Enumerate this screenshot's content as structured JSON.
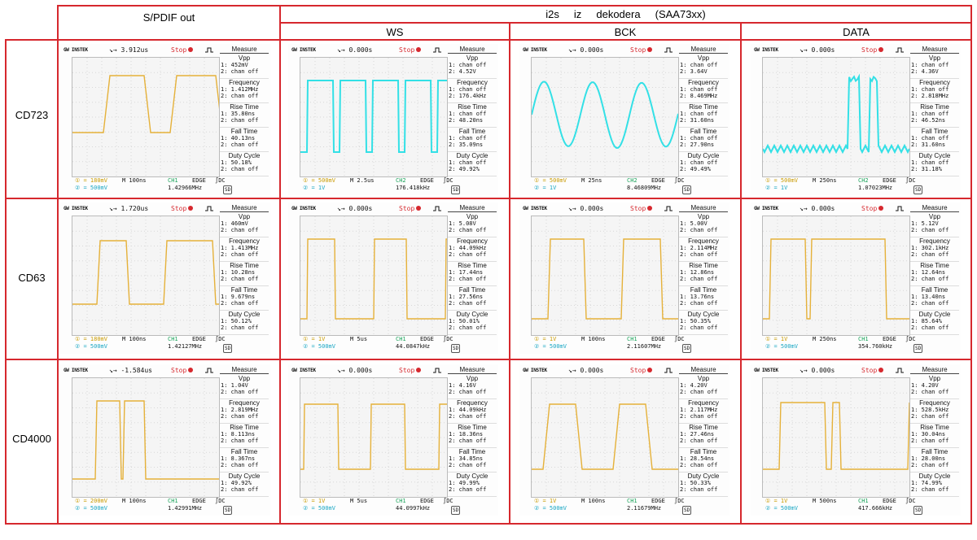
{
  "headers": {
    "spdif": "S/PDIF out",
    "i2s": "i2s     iz     dekodera     (SAA73xx)",
    "ws": "WS",
    "bck": "BCK",
    "data": "DATA"
  },
  "rows": [
    {
      "label": "CD723"
    },
    {
      "label": "CD63"
    },
    {
      "label": "CD4000"
    }
  ],
  "brand": "GW INSTEK",
  "stop_label": "Stop",
  "measure_title": "Measure",
  "measure_names": [
    "Vpp",
    "Frequency",
    "Rise Time",
    "Fall Time",
    "Duty Cycle"
  ],
  "colors": {
    "ch1": "#e5b13a",
    "ch2": "#33e0e6",
    "frame": "#d6282e"
  },
  "scopes": [
    {
      "row": 0,
      "col": 0,
      "trace_color": "ch1",
      "waveform": "spdif723",
      "trig": "↘→ 3.912us",
      "m": [
        "1: 452mV",
        "2: chan off",
        "1: 1.412MHz",
        "2: chan off",
        "1: 35.80ns",
        "2: chan off",
        "1: 40.13ns",
        "2: chan off",
        "1: 50.18%",
        "2: chan off"
      ],
      "ch1": "① = 180mV",
      "ch2": "② = 500mV",
      "time": "M 100ns",
      "src": "CH1",
      "edge": "EDGE",
      "freq": "1.42966MHz",
      "dc": "∫DC"
    },
    {
      "row": 0,
      "col": 1,
      "trace_color": "ch2",
      "waveform": "ws723",
      "trig": "↘→ 0.000s",
      "m": [
        "1: chan off",
        "2: 4.52V",
        "1: chan off",
        "2: 176.4kHz",
        "1: chan off",
        "2: 48.20ns",
        "1: chan off",
        "2: 35.09ns",
        "1: chan off",
        "2: 49.92%"
      ],
      "ch1": "① = 500mV",
      "ch2": "② = 1V",
      "time": "M 2.5us",
      "src": "CH2",
      "edge": "EDGE",
      "freq": "176.418kHz",
      "dc": "∫DC"
    },
    {
      "row": 0,
      "col": 2,
      "trace_color": "ch2",
      "waveform": "bck723",
      "trig": "↘→ 0.000s",
      "m": [
        "1: chan off",
        "2: 3.64V",
        "1: chan off",
        "2: 8.469MHz",
        "1: chan off",
        "2: 31.60ns",
        "1: chan off",
        "2: 27.90ns",
        "1: chan off",
        "2: 49.49%"
      ],
      "ch1": "① = 500mV",
      "ch2": "② = 1V",
      "time": "M 25ns",
      "src": "CH2",
      "edge": "EDGE",
      "freq": "8.46809MHz",
      "dc": "∫DC"
    },
    {
      "row": 0,
      "col": 3,
      "trace_color": "ch2",
      "waveform": "data723",
      "trig": "↘→ 0.000s",
      "m": [
        "1: chan off",
        "2: 4.36V",
        "1: chan off",
        "2: 2.818MHz",
        "1: chan off",
        "2: 46.52ns",
        "1: chan off",
        "2: 31.60ns",
        "1: chan off",
        "2: 31.18%"
      ],
      "ch1": "① = 500mV",
      "ch2": "② = 1V",
      "time": "M 250ns",
      "src": "CH2",
      "edge": "EDGE",
      "freq": "1.07023MHz",
      "dc": "∫DC"
    },
    {
      "row": 1,
      "col": 0,
      "trace_color": "ch1",
      "waveform": "spdif63",
      "trig": "↘→ 1.720us",
      "m": [
        "1: 460mV",
        "2: chan off",
        "1: 1.413MHz",
        "2: chan off",
        "1: 10.28ns",
        "2: chan off",
        "1: 9.679ns",
        "2: chan off",
        "1: 50.12%",
        "2: chan off"
      ],
      "ch1": "① = 180mV",
      "ch2": "② = 500mV",
      "time": "M 100ns",
      "src": "CH1",
      "edge": "EDGE",
      "freq": "1.42127MHz",
      "dc": "∫DC"
    },
    {
      "row": 1,
      "col": 1,
      "trace_color": "ch1",
      "waveform": "ws63",
      "trig": "↘→ 0.000s",
      "m": [
        "1: 5.08V",
        "2: chan off",
        "1: 44.09kHz",
        "2: chan off",
        "1: 17.44ns",
        "2: chan off",
        "1: 27.56ns",
        "2: chan off",
        "1: 50.01%",
        "2: chan off"
      ],
      "ch1": "① = 1V",
      "ch2": "② = 500mV",
      "time": "M 5us",
      "src": "CH1",
      "edge": "EDGE",
      "freq": "44.0847kHz",
      "dc": "∫DC"
    },
    {
      "row": 1,
      "col": 2,
      "trace_color": "ch1",
      "waveform": "bck63",
      "trig": "↘→ 0.000s",
      "m": [
        "1: 5.00V",
        "2: chan off",
        "1: 2.114MHz",
        "2: chan off",
        "1: 12.86ns",
        "2: chan off",
        "1: 13.76ns",
        "2: chan off",
        "1: 50.35%",
        "2: chan off"
      ],
      "ch1": "① = 1V",
      "ch2": "② = 500mV",
      "time": "M 100ns",
      "src": "CH1",
      "edge": "EDGE",
      "freq": "2.11607MHz",
      "dc": "∫DC"
    },
    {
      "row": 1,
      "col": 3,
      "trace_color": "ch1",
      "waveform": "data63",
      "trig": "↘→ 0.000s",
      "m": [
        "1: 5.12V",
        "2: chan off",
        "1: 302.1kHz",
        "2: chan off",
        "1: 12.64ns",
        "2: chan off",
        "1: 13.40ns",
        "2: chan off",
        "1: 85.64%",
        "2: chan off"
      ],
      "ch1": "① = 1V",
      "ch2": "② = 500mV",
      "time": "M 250ns",
      "src": "CH1",
      "edge": "EDGE",
      "freq": "354.760kHz",
      "dc": "∫DC"
    },
    {
      "row": 2,
      "col": 0,
      "trace_color": "ch1",
      "waveform": "spdif4000",
      "trig": "↘→ -1.584us",
      "m": [
        "1: 1.04V",
        "2: chan off",
        "1: 2.819MHz",
        "2: chan off",
        "1: 8.113ns",
        "2: chan off",
        "1: 8.367ns",
        "2: chan off",
        "1: 49.92%",
        "2: chan off"
      ],
      "ch1": "① = 200mV",
      "ch2": "② = 500mV",
      "time": "M 100ns",
      "src": "CH1",
      "edge": "EDGE",
      "freq": "1.42991MHz",
      "dc": "∫DC"
    },
    {
      "row": 2,
      "col": 1,
      "trace_color": "ch1",
      "waveform": "ws4000",
      "trig": "↘→ 0.000s",
      "m": [
        "1: 4.16V",
        "2: chan off",
        "1: 44.09kHz",
        "2: chan off",
        "1: 18.36ns",
        "2: chan off",
        "1: 34.85ns",
        "2: chan off",
        "1: 49.99%",
        "2: chan off"
      ],
      "ch1": "① = 1V",
      "ch2": "② = 500mV",
      "time": "M 5us",
      "src": "CH1",
      "edge": "EDGE",
      "freq": "44.0997kHz",
      "dc": "∫DC"
    },
    {
      "row": 2,
      "col": 2,
      "trace_color": "ch1",
      "waveform": "bck4000",
      "trig": "↘→ 0.000s",
      "m": [
        "1: 4.20V",
        "2: chan off",
        "1: 2.117MHz",
        "2: chan off",
        "1: 27.46ns",
        "2: chan off",
        "1: 28.54ns",
        "2: chan off",
        "1: 50.33%",
        "2: chan off"
      ],
      "ch1": "① = 1V",
      "ch2": "② = 500mV",
      "time": "M 100ns",
      "src": "CH1",
      "edge": "EDGE",
      "freq": "2.11679MHz",
      "dc": "∫DC"
    },
    {
      "row": 2,
      "col": 3,
      "trace_color": "ch1",
      "waveform": "data4000",
      "trig": "↘→ 0.000s",
      "m": [
        "1: 4.20V",
        "2: chan off",
        "1: 528.5kHz",
        "2: chan off",
        "1: 30.04ns",
        "2: chan off",
        "1: 28.00ns",
        "2: chan off",
        "1: 74.99%",
        "2: chan off"
      ],
      "ch1": "① = 1V",
      "ch2": "② = 500mV",
      "time": "M 500ns",
      "src": "CH1",
      "edge": "EDGE",
      "freq": "417.666kHz",
      "dc": "∫DC"
    }
  ]
}
